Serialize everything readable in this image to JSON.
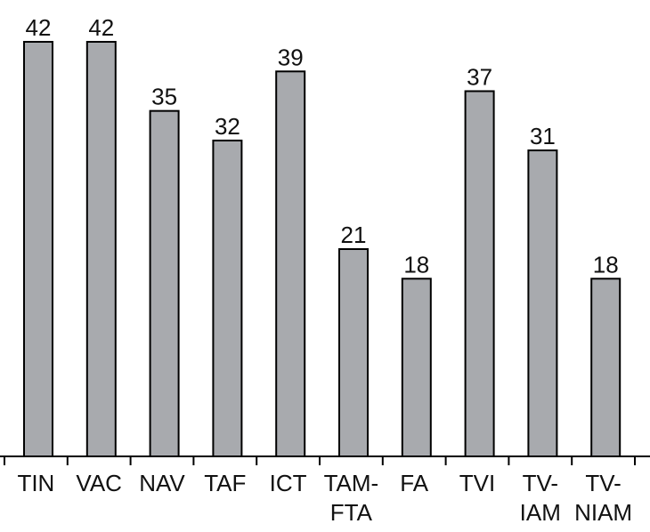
{
  "chart_data": {
    "type": "bar",
    "title": "",
    "xlabel": "",
    "ylabel": "",
    "ylim": [
      0,
      42
    ],
    "grid": false,
    "categories": [
      [
        "TIN"
      ],
      [
        "VAC"
      ],
      [
        "NAV"
      ],
      [
        "TAF"
      ],
      [
        "ICT"
      ],
      [
        "TAM-",
        "FTA"
      ],
      [
        "FA"
      ],
      [
        "TVI"
      ],
      [
        "TV-",
        "IAM"
      ],
      [
        "TV-",
        "NIAM"
      ]
    ],
    "values": [
      42,
      42,
      35,
      32,
      39,
      21,
      18,
      37,
      31,
      18
    ],
    "colors": {
      "bar_fill": "#a8aaae",
      "bar_stroke": "#000000"
    }
  }
}
